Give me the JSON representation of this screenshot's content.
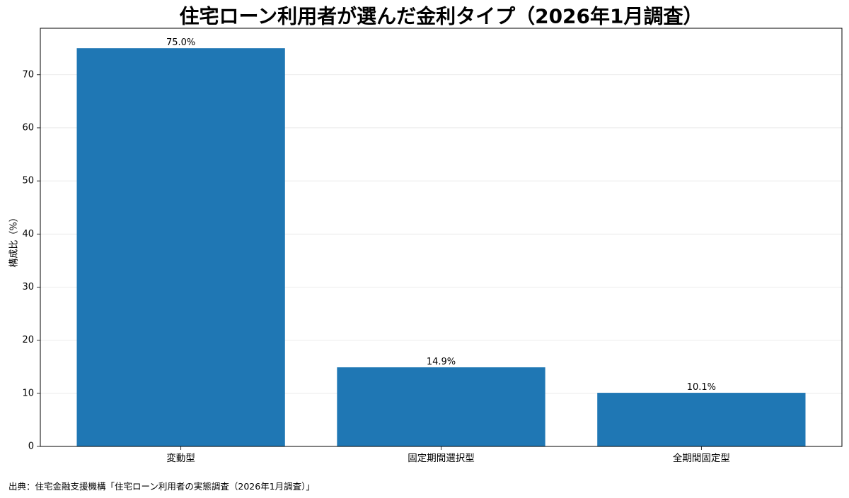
{
  "chart_data": {
    "type": "bar",
    "title": "住宅ローン利用者が選んだ金利タイプ（2026年1月調査）",
    "xlabel": "",
    "ylabel": "構成比（%）",
    "categories": [
      "変動型",
      "固定期間選択型",
      "全期間固定型"
    ],
    "values": [
      75.0,
      14.9,
      10.1
    ],
    "data_labels": [
      "75.0%",
      "14.9%",
      "10.1%"
    ],
    "ylim": [
      0,
      78.75
    ],
    "yticks": [
      0,
      10,
      20,
      30,
      40,
      50,
      60,
      70
    ],
    "grid": true,
    "grid_axis": "y",
    "bar_color": "#1f77b4"
  },
  "source": "出典：住宅金融支援機構「住宅ローン利用者の実態調査（2026年1月調査）」"
}
